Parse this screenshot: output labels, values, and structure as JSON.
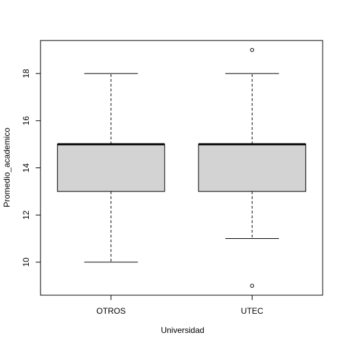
{
  "chart_data": {
    "type": "boxplot",
    "title": "",
    "xlabel": "Universidad",
    "ylabel": "Promedio_academico",
    "ylim": [
      8.6,
      19.4
    ],
    "yticks": [
      10,
      12,
      14,
      16,
      18
    ],
    "categories": [
      "OTROS",
      "UTEC"
    ],
    "boxes": [
      {
        "category": "OTROS",
        "lower_whisker": 10,
        "q1": 13,
        "median": 15,
        "q3": 15,
        "upper_whisker": 18,
        "outliers": []
      },
      {
        "category": "UTEC",
        "lower_whisker": 11,
        "q1": 13,
        "median": 15,
        "q3": 15,
        "upper_whisker": 18,
        "outliers": [
          9,
          19
        ]
      }
    ],
    "box_fill": "#d3d3d3",
    "grid": false
  }
}
